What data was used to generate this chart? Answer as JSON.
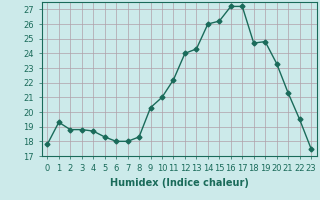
{
  "x": [
    0,
    1,
    2,
    3,
    4,
    5,
    6,
    7,
    8,
    9,
    10,
    11,
    12,
    13,
    14,
    15,
    16,
    17,
    18,
    19,
    20,
    21,
    22,
    23
  ],
  "y": [
    17.8,
    19.3,
    18.8,
    18.8,
    18.7,
    18.3,
    18.0,
    18.0,
    18.3,
    20.3,
    21.0,
    22.2,
    24.0,
    24.3,
    26.0,
    26.2,
    27.2,
    27.2,
    24.7,
    24.8,
    23.3,
    21.3,
    19.5,
    17.5
  ],
  "title": "",
  "xlabel": "Humidex (Indice chaleur)",
  "ylabel": "",
  "xlim": [
    -0.5,
    23.5
  ],
  "ylim": [
    17,
    27.5
  ],
  "yticks": [
    17,
    18,
    19,
    20,
    21,
    22,
    23,
    24,
    25,
    26,
    27
  ],
  "xticks": [
    0,
    1,
    2,
    3,
    4,
    5,
    6,
    7,
    8,
    9,
    10,
    11,
    12,
    13,
    14,
    15,
    16,
    17,
    18,
    19,
    20,
    21,
    22,
    23
  ],
  "line_color": "#1a6b5a",
  "marker": "D",
  "marker_size": 2.5,
  "bg_color": "#cceaea",
  "grid_color": "#b0a0a8",
  "axis_fontsize": 7,
  "tick_fontsize": 6
}
